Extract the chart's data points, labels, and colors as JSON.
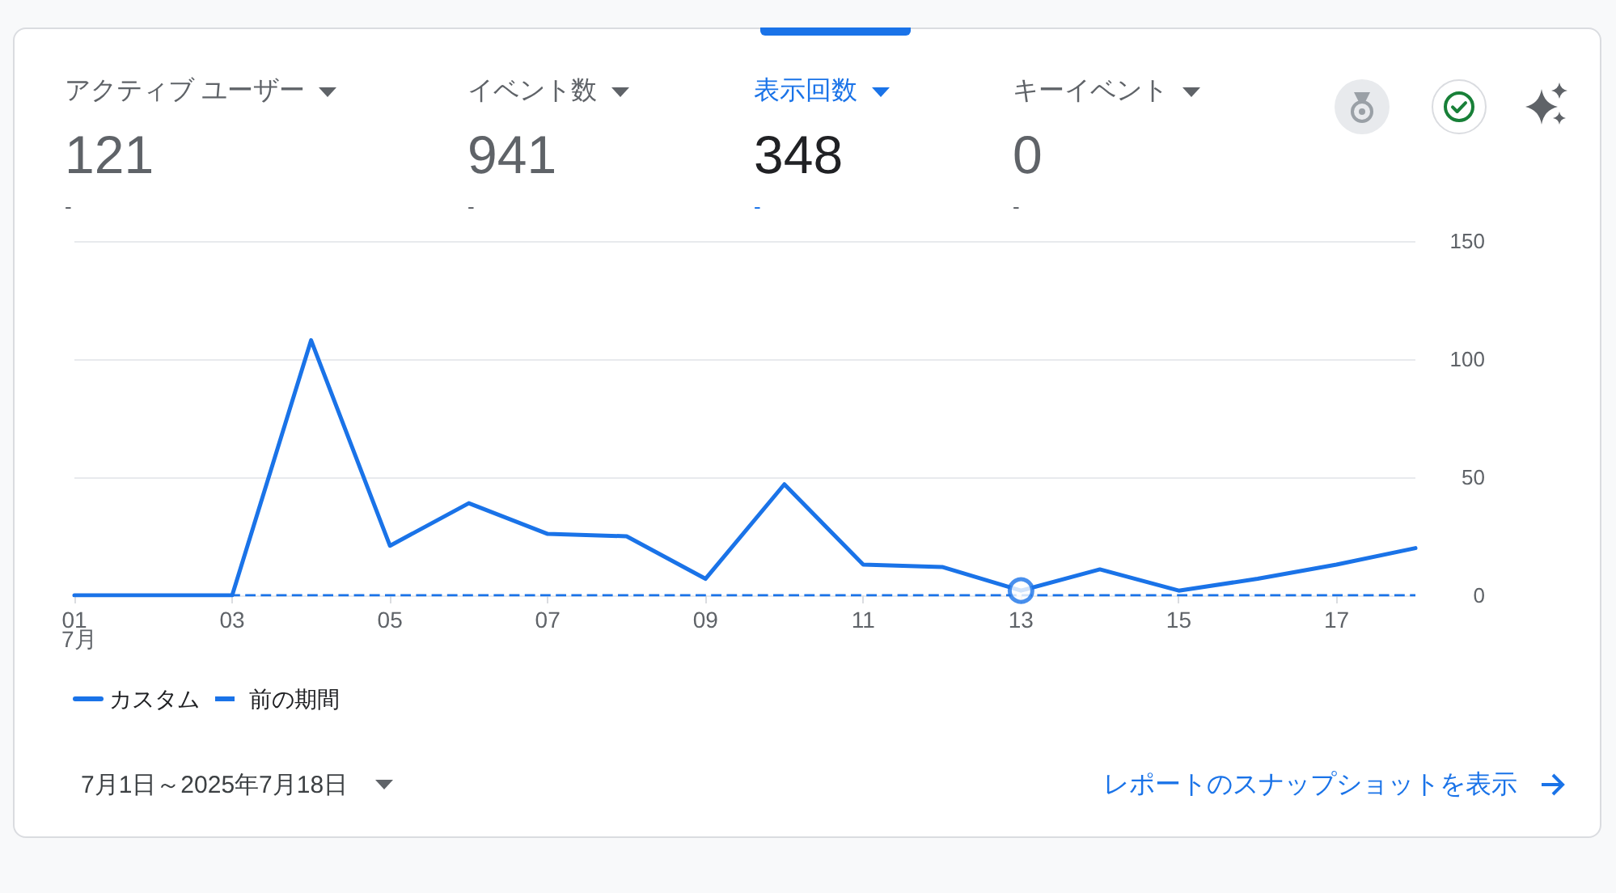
{
  "chart_data": [
    {
      "type": "other",
      "categories": [
        "アクティブ ユーザー",
        "イベント数",
        "表示回数",
        "キーイベント"
      ],
      "values": [
        121,
        941,
        348,
        0
      ],
      "data_labels": true,
      "colors": [
        "#5f6368",
        "#5f6368",
        "#1a73e8",
        "#5f6368"
      ],
      "annotations": [
        "-",
        "-",
        "-",
        "-"
      ]
    },
    {
      "type": "line",
      "categories": [
        "01",
        null,
        "03",
        null,
        "05",
        null,
        "07",
        null,
        "09",
        null,
        "11",
        null,
        "13",
        null,
        "15",
        null,
        "17",
        null
      ],
      "series": [
        {
          "name": "カスタム",
          "color": "#1a73e8",
          "values": [
            0,
            0,
            0,
            108,
            21,
            39,
            26,
            25,
            7,
            47,
            13,
            12,
            2,
            11,
            2,
            7,
            13,
            20
          ],
          "line_style": "solid"
        },
        {
          "name": "前の期間",
          "color": "#1a73e8",
          "values": [
            0,
            0,
            0,
            0,
            0,
            0,
            0,
            0,
            0,
            0,
            0,
            0,
            0,
            0,
            0,
            0,
            0,
            0
          ],
          "line_style": "dashed"
        },
        {
          "type": "scatter",
          "color": "#1a73e8",
          "x": [
            "13"
          ],
          "values": [
            2
          ],
          "marker": "circle"
        }
      ],
      "ylim": [
        0,
        150
      ],
      "yticks": [
        0,
        50,
        100,
        150
      ],
      "grid": "y",
      "legend": "bottom left",
      "marker": "none",
      "annotations": [
        "7月",
        "7月1日～2025年7月18日",
        "レポートのスナップショットを表示"
      ]
    }
  ]
}
